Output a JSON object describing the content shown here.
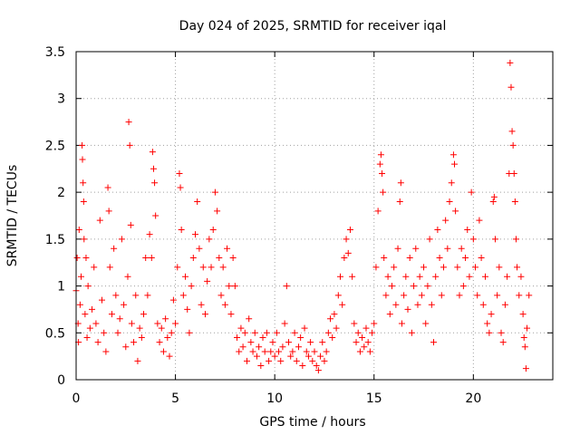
{
  "chart_data": {
    "type": "scatter",
    "title": "Day 024 of 2025, SRMTID for receiver iqal",
    "xlabel": "GPS time / hours",
    "ylabel": "SRMTID / TECUs",
    "xlim": [
      0,
      24
    ],
    "ylim": [
      0,
      3.5
    ],
    "xticks": [
      0,
      5,
      10,
      15,
      20
    ],
    "xtick_labels": [
      "0",
      "5",
      "10",
      "15",
      "20"
    ],
    "yticks": [
      0,
      0.5,
      1,
      1.5,
      2,
      2.5,
      3,
      3.5
    ],
    "ytick_labels": [
      "0",
      "0.5",
      "1",
      "1.5",
      "2",
      "2.5",
      "3",
      "3.5"
    ],
    "grid": true,
    "marker": "+",
    "series": [
      {
        "name": "SRMTID",
        "color": "#ff0000",
        "points": [
          [
            0.0,
            0.95
          ],
          [
            0.05,
            1.3
          ],
          [
            0.1,
            0.6
          ],
          [
            0.12,
            0.4
          ],
          [
            0.15,
            1.6
          ],
          [
            0.2,
            0.8
          ],
          [
            0.25,
            1.1
          ],
          [
            0.3,
            2.5
          ],
          [
            0.32,
            2.35
          ],
          [
            0.35,
            2.1
          ],
          [
            0.38,
            1.9
          ],
          [
            0.4,
            1.5
          ],
          [
            0.45,
            0.7
          ],
          [
            0.5,
            1.3
          ],
          [
            0.55,
            0.45
          ],
          [
            0.6,
            1.0
          ],
          [
            0.7,
            0.55
          ],
          [
            0.8,
            0.75
          ],
          [
            0.9,
            1.2
          ],
          [
            1.0,
            0.6
          ],
          [
            1.1,
            0.4
          ],
          [
            1.2,
            1.7
          ],
          [
            1.3,
            0.85
          ],
          [
            1.4,
            0.5
          ],
          [
            1.5,
            0.3
          ],
          [
            1.6,
            2.05
          ],
          [
            1.65,
            1.8
          ],
          [
            1.7,
            1.2
          ],
          [
            1.8,
            0.7
          ],
          [
            1.9,
            1.4
          ],
          [
            2.0,
            0.9
          ],
          [
            2.1,
            0.5
          ],
          [
            2.2,
            0.65
          ],
          [
            2.3,
            1.5
          ],
          [
            2.4,
            0.8
          ],
          [
            2.5,
            0.35
          ],
          [
            2.6,
            1.1
          ],
          [
            2.65,
            2.75
          ],
          [
            2.7,
            2.5
          ],
          [
            2.75,
            1.65
          ],
          [
            2.8,
            0.6
          ],
          [
            2.9,
            0.4
          ],
          [
            3.0,
            0.9
          ],
          [
            3.1,
            0.2
          ],
          [
            3.2,
            0.55
          ],
          [
            3.3,
            0.45
          ],
          [
            3.4,
            0.7
          ],
          [
            3.5,
            1.3
          ],
          [
            3.6,
            0.9
          ],
          [
            3.7,
            1.55
          ],
          [
            3.8,
            1.3
          ],
          [
            3.85,
            2.43
          ],
          [
            3.9,
            2.25
          ],
          [
            3.95,
            2.1
          ],
          [
            4.0,
            1.75
          ],
          [
            4.1,
            0.6
          ],
          [
            4.2,
            0.4
          ],
          [
            4.3,
            0.55
          ],
          [
            4.4,
            0.3
          ],
          [
            4.5,
            0.65
          ],
          [
            4.6,
            0.45
          ],
          [
            4.7,
            0.25
          ],
          [
            4.8,
            0.5
          ],
          [
            4.9,
            0.85
          ],
          [
            5.0,
            0.6
          ],
          [
            5.1,
            1.2
          ],
          [
            5.2,
            2.2
          ],
          [
            5.25,
            2.05
          ],
          [
            5.3,
            1.6
          ],
          [
            5.4,
            0.9
          ],
          [
            5.5,
            1.1
          ],
          [
            5.6,
            0.75
          ],
          [
            5.7,
            0.5
          ],
          [
            5.8,
            1.0
          ],
          [
            5.9,
            1.3
          ],
          [
            6.0,
            1.55
          ],
          [
            6.1,
            1.9
          ],
          [
            6.2,
            1.4
          ],
          [
            6.3,
            0.8
          ],
          [
            6.4,
            1.2
          ],
          [
            6.5,
            0.7
          ],
          [
            6.6,
            1.05
          ],
          [
            6.7,
            1.5
          ],
          [
            6.8,
            1.2
          ],
          [
            6.9,
            1.6
          ],
          [
            7.0,
            2.0
          ],
          [
            7.1,
            1.8
          ],
          [
            7.2,
            1.3
          ],
          [
            7.3,
            0.9
          ],
          [
            7.4,
            1.2
          ],
          [
            7.5,
            0.8
          ],
          [
            7.6,
            1.4
          ],
          [
            7.7,
            1.0
          ],
          [
            7.8,
            0.7
          ],
          [
            7.9,
            1.3
          ],
          [
            8.0,
            1.0
          ],
          [
            8.1,
            0.45
          ],
          [
            8.2,
            0.3
          ],
          [
            8.3,
            0.55
          ],
          [
            8.4,
            0.35
          ],
          [
            8.5,
            0.5
          ],
          [
            8.6,
            0.2
          ],
          [
            8.7,
            0.65
          ],
          [
            8.8,
            0.4
          ],
          [
            8.9,
            0.3
          ],
          [
            9.0,
            0.5
          ],
          [
            9.1,
            0.25
          ],
          [
            9.2,
            0.35
          ],
          [
            9.3,
            0.15
          ],
          [
            9.4,
            0.45
          ],
          [
            9.5,
            0.3
          ],
          [
            9.6,
            0.5
          ],
          [
            9.7,
            0.2
          ],
          [
            9.8,
            0.3
          ],
          [
            9.9,
            0.4
          ],
          [
            10.0,
            0.25
          ],
          [
            10.1,
            0.5
          ],
          [
            10.2,
            0.3
          ],
          [
            10.3,
            0.2
          ],
          [
            10.4,
            0.35
          ],
          [
            10.5,
            0.6
          ],
          [
            10.6,
            1.0
          ],
          [
            10.7,
            0.4
          ],
          [
            10.8,
            0.25
          ],
          [
            10.9,
            0.3
          ],
          [
            11.0,
            0.5
          ],
          [
            11.1,
            0.2
          ],
          [
            11.2,
            0.35
          ],
          [
            11.3,
            0.45
          ],
          [
            11.4,
            0.15
          ],
          [
            11.5,
            0.55
          ],
          [
            11.6,
            0.3
          ],
          [
            11.7,
            0.25
          ],
          [
            11.8,
            0.4
          ],
          [
            11.9,
            0.2
          ],
          [
            12.0,
            0.3
          ],
          [
            12.1,
            0.15
          ],
          [
            12.2,
            0.1
          ],
          [
            12.3,
            0.25
          ],
          [
            12.4,
            0.4
          ],
          [
            12.5,
            0.2
          ],
          [
            12.6,
            0.3
          ],
          [
            12.7,
            0.5
          ],
          [
            12.8,
            0.65
          ],
          [
            12.9,
            0.45
          ],
          [
            13.0,
            0.7
          ],
          [
            13.1,
            0.55
          ],
          [
            13.2,
            0.9
          ],
          [
            13.3,
            1.1
          ],
          [
            13.4,
            0.8
          ],
          [
            13.5,
            1.3
          ],
          [
            13.6,
            1.5
          ],
          [
            13.7,
            1.35
          ],
          [
            13.8,
            1.6
          ],
          [
            13.9,
            1.1
          ],
          [
            14.0,
            0.6
          ],
          [
            14.1,
            0.4
          ],
          [
            14.2,
            0.5
          ],
          [
            14.3,
            0.3
          ],
          [
            14.4,
            0.45
          ],
          [
            14.5,
            0.35
          ],
          [
            14.6,
            0.55
          ],
          [
            14.7,
            0.4
          ],
          [
            14.8,
            0.3
          ],
          [
            14.9,
            0.5
          ],
          [
            15.0,
            0.6
          ],
          [
            15.1,
            1.2
          ],
          [
            15.2,
            1.8
          ],
          [
            15.3,
            2.3
          ],
          [
            15.35,
            2.4
          ],
          [
            15.4,
            2.2
          ],
          [
            15.45,
            2.0
          ],
          [
            15.5,
            1.3
          ],
          [
            15.6,
            0.9
          ],
          [
            15.7,
            1.1
          ],
          [
            15.8,
            0.7
          ],
          [
            15.9,
            1.0
          ],
          [
            16.0,
            1.2
          ],
          [
            16.1,
            0.8
          ],
          [
            16.2,
            1.4
          ],
          [
            16.3,
            1.9
          ],
          [
            16.35,
            2.1
          ],
          [
            16.4,
            0.6
          ],
          [
            16.5,
            0.9
          ],
          [
            16.6,
            1.1
          ],
          [
            16.7,
            0.75
          ],
          [
            16.8,
            1.3
          ],
          [
            16.9,
            0.5
          ],
          [
            17.0,
            1.0
          ],
          [
            17.1,
            1.4
          ],
          [
            17.2,
            0.8
          ],
          [
            17.3,
            1.1
          ],
          [
            17.4,
            0.9
          ],
          [
            17.5,
            1.2
          ],
          [
            17.6,
            0.6
          ],
          [
            17.7,
            1.0
          ],
          [
            17.8,
            1.5
          ],
          [
            17.9,
            0.8
          ],
          [
            18.0,
            0.4
          ],
          [
            18.1,
            1.1
          ],
          [
            18.2,
            1.6
          ],
          [
            18.3,
            1.3
          ],
          [
            18.4,
            0.9
          ],
          [
            18.5,
            1.2
          ],
          [
            18.6,
            1.7
          ],
          [
            18.7,
            1.4
          ],
          [
            18.8,
            1.9
          ],
          [
            18.9,
            2.1
          ],
          [
            19.0,
            2.4
          ],
          [
            19.05,
            2.3
          ],
          [
            19.1,
            1.8
          ],
          [
            19.2,
            1.2
          ],
          [
            19.3,
            0.9
          ],
          [
            19.4,
            1.4
          ],
          [
            19.5,
            1.0
          ],
          [
            19.6,
            1.3
          ],
          [
            19.7,
            1.6
          ],
          [
            19.8,
            1.1
          ],
          [
            19.9,
            2.0
          ],
          [
            20.0,
            1.5
          ],
          [
            20.1,
            1.2
          ],
          [
            20.2,
            0.9
          ],
          [
            20.3,
            1.7
          ],
          [
            20.4,
            1.3
          ],
          [
            20.5,
            0.8
          ],
          [
            20.6,
            1.1
          ],
          [
            20.7,
            0.6
          ],
          [
            20.8,
            0.5
          ],
          [
            20.9,
            0.7
          ],
          [
            21.0,
            1.9
          ],
          [
            21.05,
            1.95
          ],
          [
            21.1,
            1.5
          ],
          [
            21.2,
            0.9
          ],
          [
            21.3,
            1.2
          ],
          [
            21.4,
            0.5
          ],
          [
            21.5,
            0.4
          ],
          [
            21.6,
            0.8
          ],
          [
            21.7,
            1.1
          ],
          [
            21.8,
            2.2
          ],
          [
            21.85,
            3.38
          ],
          [
            21.9,
            3.12
          ],
          [
            21.95,
            2.65
          ],
          [
            22.0,
            2.5
          ],
          [
            22.05,
            2.2
          ],
          [
            22.1,
            1.9
          ],
          [
            22.15,
            1.5
          ],
          [
            22.2,
            1.2
          ],
          [
            22.3,
            0.9
          ],
          [
            22.4,
            1.1
          ],
          [
            22.5,
            0.7
          ],
          [
            22.55,
            0.45
          ],
          [
            22.6,
            0.35
          ],
          [
            22.65,
            0.12
          ],
          [
            22.7,
            0.55
          ],
          [
            22.8,
            0.9
          ]
        ]
      }
    ]
  }
}
